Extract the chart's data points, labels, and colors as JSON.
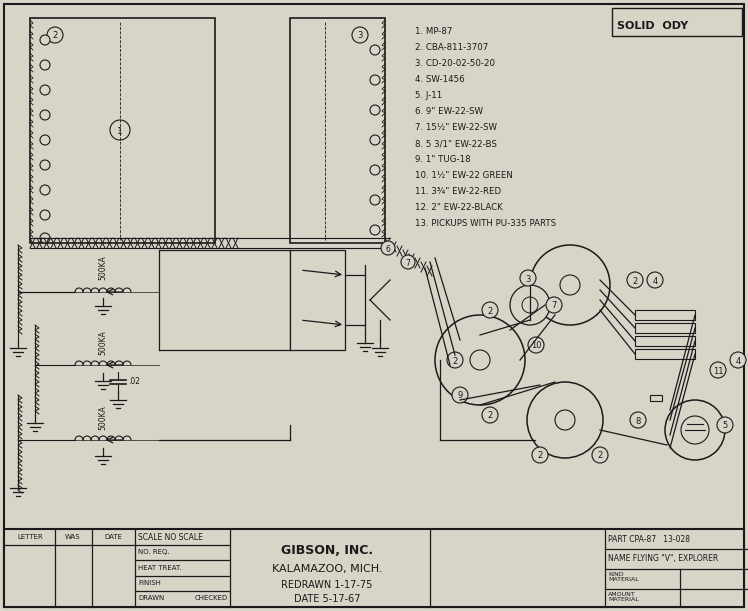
{
  "bg_color": "#d8d4c8",
  "line_color": "#1a1a1a",
  "title_company": "GIBSON, INC.",
  "title_city": "KALAMAZOO, MICH.",
  "title_redrawn": "REDRAWN 1-17-75",
  "title_date": "DATE 5-17-67",
  "part_num": "PART CPA-87   13-028",
  "part_name": "NAME FLYING \"V\", EXPLORER",
  "solid_body": "SOLID  ODY",
  "scale_text": "SCALE NO SCALE",
  "letter_col": "LETTER",
  "was_col": "WAS",
  "date_col": "DATE",
  "no_req": "NO. REQ.",
  "heat_treat": "HEAT TREAT.",
  "finish": "FINISH",
  "drawn": "DRAWN",
  "checked": "CHECKED",
  "kind_material": "KIND\nMATERIAL",
  "amount_material": "AMOUNT\nMATERIAL",
  "parts_list": [
    "1. MP-87",
    "2. CBA-811-3707",
    "3. CD-20-02-50-20",
    "4. SW-1456",
    "5. J-11",
    "6. 9\" EW-22-SW",
    "7. 15½\" EW-22-SW",
    "8. 5 3/1\" EW-22-BS",
    "9. 1\" TUG-18",
    "10. 1½\" EW-22 GREEN",
    "11. 3¾\" EW-22-RED",
    "12. 2\" EW-22-BLACK",
    "13. PICKUPS WITH PU-335 PARTS"
  ],
  "figsize": [
    7.48,
    6.11
  ],
  "dpi": 100
}
